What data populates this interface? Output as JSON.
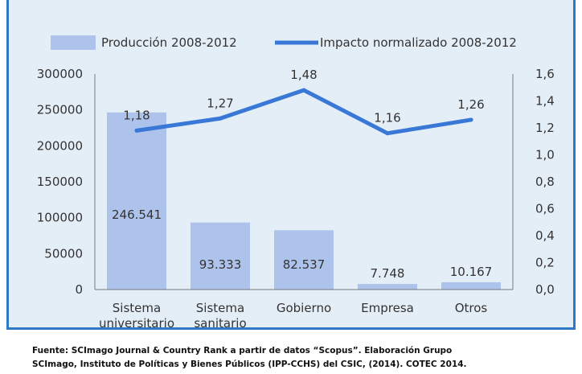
{
  "chart_data": {
    "type": "bar",
    "categories": [
      [
        "Sistema",
        "universitario"
      ],
      [
        "Sistema",
        "sanitario"
      ],
      [
        "Gobierno"
      ],
      [
        "Empresa"
      ],
      [
        "Otros"
      ]
    ],
    "series": [
      {
        "name": "Producción 2008-2012",
        "kind": "bar",
        "axis": "left",
        "values": [
          246541,
          93333,
          82537,
          7748,
          10167
        ],
        "labels": [
          "246.541",
          "93.333",
          "82.537",
          "7.748",
          "10.167"
        ],
        "color": "#aec3ec"
      },
      {
        "name": "Impacto normalizado 2008-2012",
        "kind": "line",
        "axis": "right",
        "values": [
          1.18,
          1.27,
          1.48,
          1.16,
          1.26
        ],
        "labels": [
          "1,18",
          "1,27",
          "1,48",
          "1,16",
          "1,26"
        ],
        "color": "#3a78d8"
      }
    ],
    "y_left": {
      "min": 0,
      "max": 300000,
      "ticks": [
        "0",
        "50000",
        "100000",
        "150000",
        "200000",
        "250000",
        "300000"
      ]
    },
    "y_right": {
      "min": 0,
      "max": 1.6,
      "ticks": [
        "0,0",
        "0,2",
        "0,4",
        "0,6",
        "0,8",
        "1,0",
        "1,2",
        "1,4",
        "1,6"
      ]
    },
    "legend_position": "top",
    "grid": false
  },
  "source": {
    "line1": "Fuente: SCImago Journal  & Country  Rank a partir de datos “Scopus”. Elaboración  Grupo",
    "line2": "SCImago, Instituto  de Políticas y Bienes Públicos  (IPP-CCHS) del CSIC, (2014).  COTEC 2014."
  }
}
